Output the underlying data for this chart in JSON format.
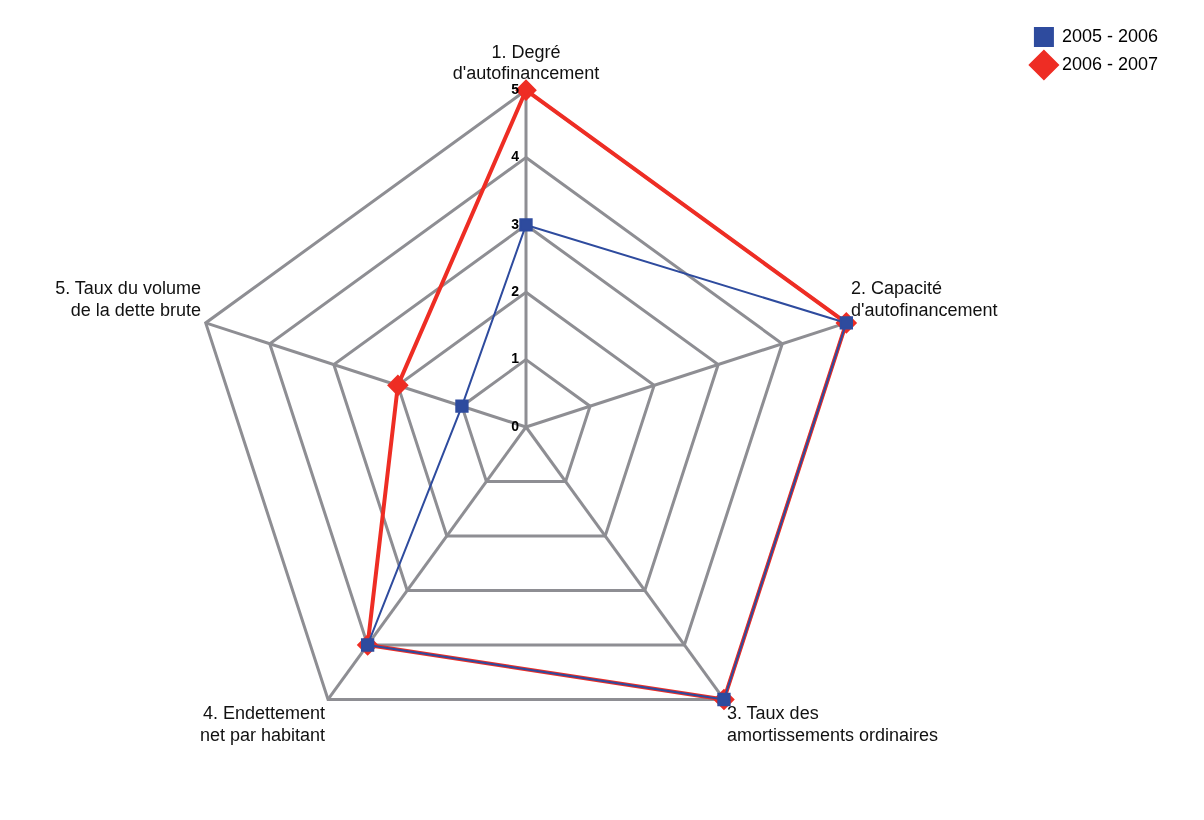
{
  "chart_data": {
    "type": "radar",
    "categories": [
      "1. Degré d'autofinancement",
      "2. Capacité d'autofinancement",
      "3. Taux des amortissements ordinaires",
      "4. Endettement net par habitant",
      "5. Taux du volume de la dette brute"
    ],
    "series": [
      {
        "name": "2005 - 2006",
        "color": "#2e4b9e",
        "marker": "square",
        "values": [
          3,
          5,
          5,
          4,
          1
        ]
      },
      {
        "name": "2006 - 2007",
        "color": "#ee2d24",
        "marker": "diamond",
        "values": [
          5,
          5,
          5,
          4,
          2
        ]
      }
    ],
    "ylim": [
      0,
      5
    ],
    "yticks": [
      0,
      1,
      2,
      3,
      4,
      5
    ],
    "grid": true,
    "legend": "top right"
  }
}
